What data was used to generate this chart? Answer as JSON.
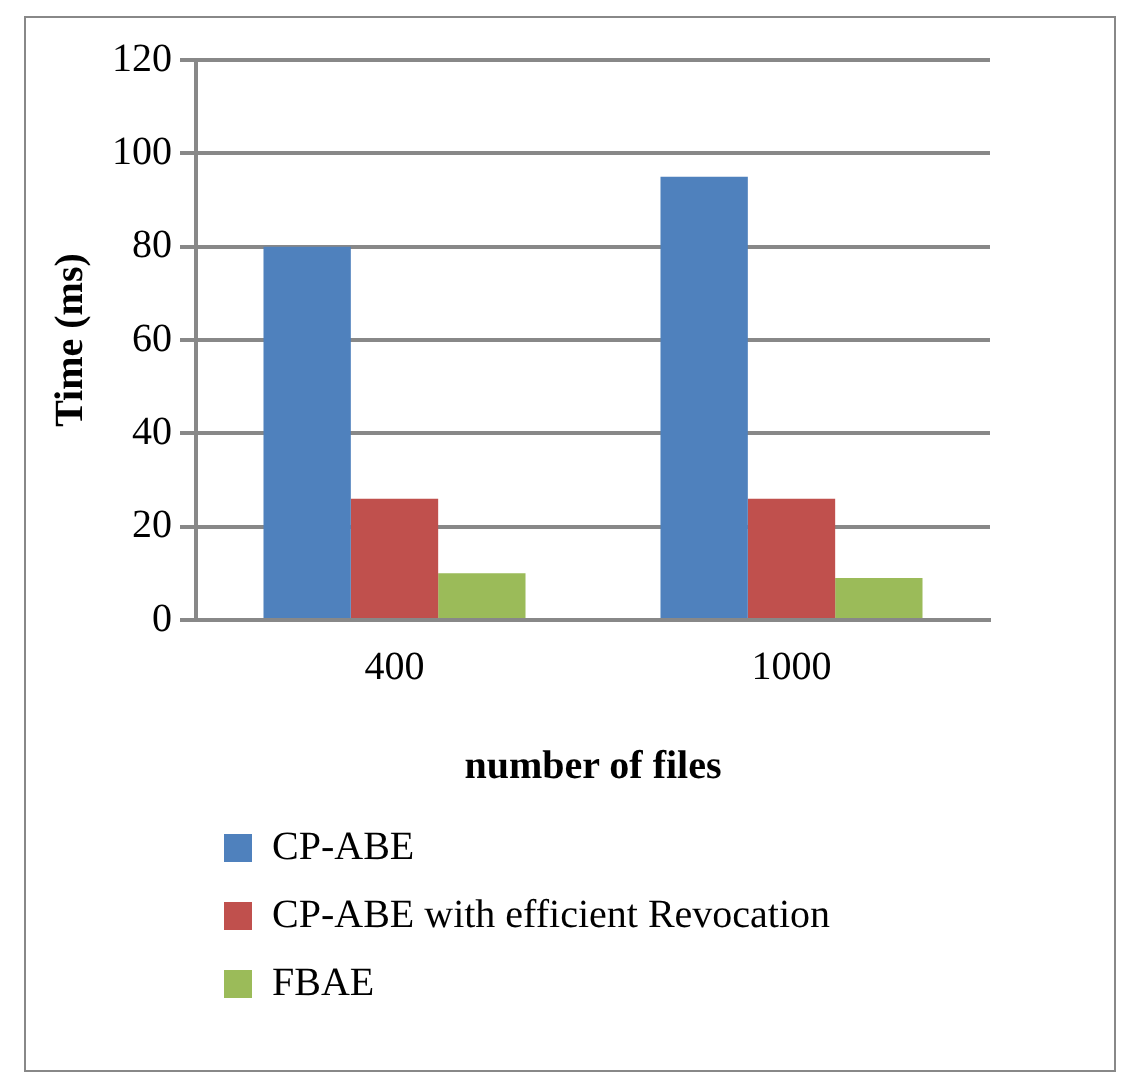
{
  "chart_data": {
    "type": "bar",
    "xlabel": "number of files",
    "ylabel": "Time (ms)",
    "categories": [
      "400",
      "1000"
    ],
    "series": [
      {
        "name": "CP-ABE",
        "color": "#4f81bd",
        "values": [
          80,
          95
        ]
      },
      {
        "name": "CP-ABE with efficient Revocation",
        "color": "#c0504d",
        "values": [
          26,
          26
        ]
      },
      {
        "name": "FBAE",
        "color": "#9bbb59",
        "values": [
          10,
          9
        ]
      }
    ],
    "ylim": [
      0,
      120
    ],
    "yticks": [
      0,
      20,
      40,
      60,
      80,
      100,
      120
    ],
    "grid": "y",
    "legend": "bottom"
  }
}
